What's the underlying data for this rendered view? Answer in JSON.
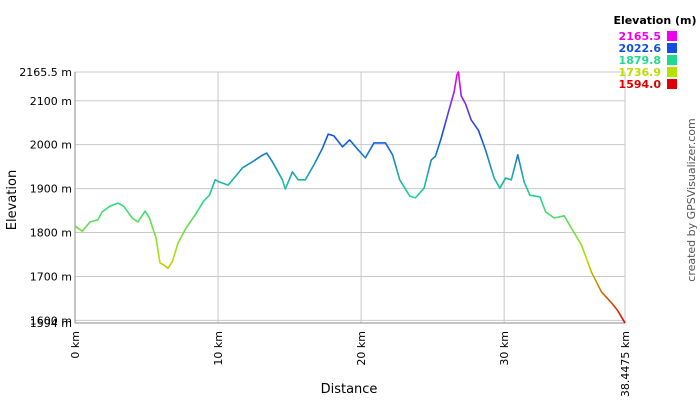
{
  "chart_data": {
    "type": "line",
    "y_label": "Elevation",
    "x_label": "Distance",
    "credit": "created by GPSVisualizer.com",
    "xlim": [
      0,
      38.4475
    ],
    "ylim": [
      1594,
      2165.5
    ],
    "xticks": [
      {
        "value": 0,
        "label": "0 km"
      },
      {
        "value": 10,
        "label": "10 km"
      },
      {
        "value": 20,
        "label": "20 km"
      },
      {
        "value": 30,
        "label": "30 km"
      },
      {
        "value": 38.4475,
        "label": "38.4475 km"
      }
    ],
    "yticks": [
      {
        "value": 1594,
        "label": "1594 m"
      },
      {
        "value": 1600,
        "label": "1600 m"
      },
      {
        "value": 1700,
        "label": "1700 m"
      },
      {
        "value": 1800,
        "label": "1800 m"
      },
      {
        "value": 1900,
        "label": "1900 m"
      },
      {
        "value": 2000,
        "label": "2000 m"
      },
      {
        "value": 2100,
        "label": "2100 m"
      },
      {
        "value": 2165.5,
        "label": "2165.5 m"
      }
    ],
    "grid": true,
    "legend": {
      "title": "Elevation (m)",
      "values": [
        2165.5,
        2022.6,
        1879.8,
        1736.9,
        1594
      ],
      "value_labels": [
        "2165.5",
        "2022.6",
        "1879.8",
        "1736.9",
        "1594.0"
      ],
      "colors": [
        "#f000f0",
        "#1050e0",
        "#20d890",
        "#b8e000",
        "#e00000"
      ]
    },
    "x": [
      0,
      0.5,
      1.05,
      1.6,
      1.9,
      2.45,
      3.0,
      3.4,
      4.0,
      4.4,
      4.9,
      5.2,
      5.66,
      5.94,
      6.2,
      6.5,
      6.8,
      7.2,
      7.76,
      8.4,
      9.0,
      9.4,
      9.8,
      10.1,
      10.7,
      11.25,
      11.7,
      12.4,
      13.1,
      13.4,
      13.8,
      14.5,
      14.7,
      15.2,
      15.6,
      16.1,
      16.7,
      17.3,
      17.7,
      18.1,
      18.7,
      19.2,
      19.8,
      20.3,
      20.9,
      21.3,
      21.7,
      22.2,
      22.7,
      23.4,
      23.8,
      24.4,
      24.9,
      25.2,
      25.6,
      26.1,
      26.5,
      26.7,
      26.8,
      27.0,
      27.3,
      27.7,
      28.2,
      28.7,
      29.3,
      29.7,
      30.1,
      30.5,
      30.95,
      31.4,
      31.8,
      32.5,
      32.9,
      33.5,
      34.2,
      34.7,
      35.4,
      36.1,
      36.8,
      37.5,
      37.9,
      38.4475
    ],
    "values": [
      1815,
      1803,
      1824,
      1829,
      1847,
      1860,
      1867,
      1860,
      1833,
      1824,
      1849,
      1833,
      1788,
      1731,
      1726,
      1719,
      1733,
      1776,
      1810,
      1840,
      1872,
      1885,
      1920,
      1915,
      1908,
      1929,
      1947,
      1961,
      1976,
      1981,
      1961,
      1920,
      1899,
      1938,
      1920,
      1920,
      1954,
      1992,
      2024,
      2020,
      1995,
      2011,
      1988,
      1970,
      2004,
      2004,
      2004,
      1977,
      1920,
      1883,
      1879,
      1901,
      1965,
      1974,
      2015,
      2074,
      2120,
      2159,
      2165.5,
      2111,
      2093,
      2056,
      2033,
      1988,
      1924,
      1901,
      1924,
      1920,
      1977,
      1915,
      1885,
      1881,
      1847,
      1833,
      1838,
      1810,
      1772,
      1710,
      1665,
      1640,
      1624,
      1594
    ]
  }
}
